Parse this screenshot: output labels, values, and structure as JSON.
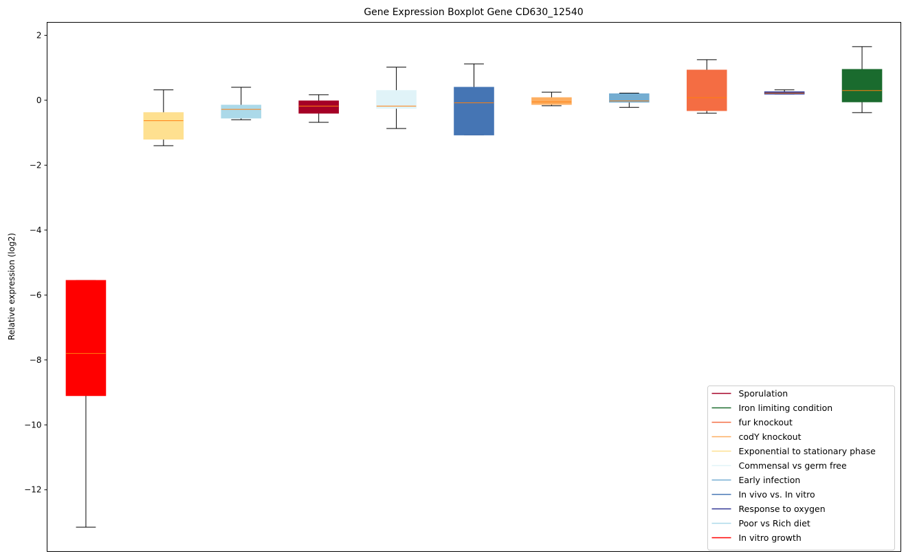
{
  "chart_data": {
    "type": "boxplot",
    "title": "Gene Expression Boxplot Gene CD630_12540",
    "xlabel": "",
    "ylabel": "Relative expression (log2)",
    "ylim": [
      -13.9,
      2.4
    ],
    "yticks": [
      2,
      0,
      -2,
      -4,
      -6,
      -8,
      -10,
      -12
    ],
    "ytick_labels": [
      "2",
      "0",
      "−2",
      "−4",
      "−6",
      "−8",
      "−10",
      "−12"
    ],
    "grid": false,
    "legend_position": "lower right",
    "series": [
      {
        "name": "In vitro growth",
        "color": "#ff0000",
        "whisker_low": -13.15,
        "q1": -9.1,
        "median": -7.8,
        "q3": -5.55,
        "whisker_high": -5.55
      },
      {
        "name": "Exponential to stationary phase",
        "color": "#fee090",
        "whisker_low": -1.4,
        "q1": -1.2,
        "median": -0.63,
        "q3": -0.38,
        "whisker_high": 0.32
      },
      {
        "name": "Poor vs Rich diet",
        "color": "#abd9e9",
        "whisker_low": -0.6,
        "q1": -0.55,
        "median": -0.28,
        "q3": -0.15,
        "whisker_high": 0.4
      },
      {
        "name": "Sporulation",
        "color": "#a50026",
        "whisker_low": -0.68,
        "q1": -0.4,
        "median": -0.18,
        "q3": -0.02,
        "whisker_high": 0.17
      },
      {
        "name": "Commensal vs germ free",
        "color": "#e0f3f8",
        "whisker_low": -0.87,
        "q1": -0.25,
        "median": -0.18,
        "q3": 0.3,
        "whisker_high": 1.02
      },
      {
        "name": "In vivo vs. In vitro",
        "color": "#4575b4",
        "whisker_low": -1.07,
        "q1": -1.07,
        "median": -0.08,
        "q3": 0.4,
        "whisker_high": 1.12
      },
      {
        "name": "codY knockout",
        "color": "#fdae61",
        "whisker_low": -0.17,
        "q1": -0.13,
        "median": -0.05,
        "q3": 0.08,
        "whisker_high": 0.25
      },
      {
        "name": "Early infection",
        "color": "#74add1",
        "whisker_low": -0.22,
        "q1": -0.06,
        "median": -0.02,
        "q3": 0.2,
        "whisker_high": 0.22
      },
      {
        "name": "fur knockout",
        "color": "#f46d43",
        "whisker_low": -0.4,
        "q1": -0.32,
        "median": 0.08,
        "q3": 0.93,
        "whisker_high": 1.25
      },
      {
        "name": "Response to oxygen",
        "color": "#313695",
        "whisker_low": 0.19,
        "q1": 0.19,
        "median": 0.22,
        "q3": 0.26,
        "whisker_high": 0.32
      },
      {
        "name": "Iron limiting condition",
        "color": "#1a6b2e",
        "whisker_low": -0.38,
        "q1": -0.05,
        "median": 0.3,
        "q3": 0.95,
        "whisker_high": 1.65
      }
    ],
    "median_color": "#ff7f0e",
    "legend": [
      {
        "label": "Sporulation",
        "color": "#a50026"
      },
      {
        "label": "Iron limiting condition",
        "color": "#1a6b2e"
      },
      {
        "label": "fur knockout",
        "color": "#f46d43"
      },
      {
        "label": "codY knockout",
        "color": "#fdae61"
      },
      {
        "label": "Exponential to stationary phase",
        "color": "#fee090"
      },
      {
        "label": "Commensal vs germ free",
        "color": "#e0f3f8"
      },
      {
        "label": "Early infection",
        "color": "#74add1"
      },
      {
        "label": "In vivo vs. In vitro",
        "color": "#4575b4"
      },
      {
        "label": "Response to oxygen",
        "color": "#313695"
      },
      {
        "label": "Poor vs Rich diet",
        "color": "#abd9e9"
      },
      {
        "label": "In vitro growth",
        "color": "#ff0000"
      }
    ]
  }
}
